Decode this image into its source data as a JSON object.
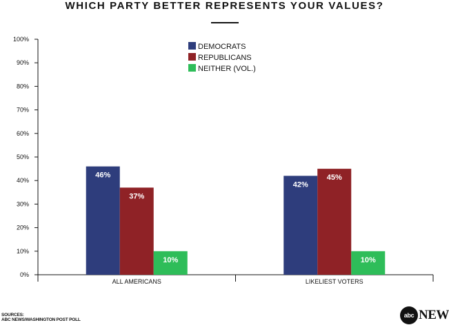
{
  "page": {
    "title": "WHICH PARTY BETTER REPRESENTS YOUR VALUES?",
    "sources_heading": "SOURCES:",
    "sources_text": "ABC NEWS/WASHINGTON POST POLL",
    "logo_circle": "abc",
    "logo_word": "NEWS"
  },
  "chart_data": {
    "type": "bar",
    "title": "WHICH PARTY BETTER REPRESENTS YOUR VALUES?",
    "categories": [
      "ALL AMERICANS",
      "LIKELIEST VOTERS"
    ],
    "series": [
      {
        "name": "DEMOCRATS",
        "values": [
          46,
          42
        ],
        "color": "#2e3d7c"
      },
      {
        "name": "REPUBLICANS",
        "values": [
          37,
          45
        ],
        "color": "#8f2226"
      },
      {
        "name": "NEITHER (VOL.)",
        "values": [
          10,
          10
        ],
        "color": "#2ebd59"
      }
    ],
    "data_labels": [
      [
        "46%",
        "42%"
      ],
      [
        "37%",
        "45%"
      ],
      [
        "10%",
        "10%"
      ]
    ],
    "yticks": [
      "0%",
      "10%",
      "20%",
      "30%",
      "40%",
      "50%",
      "60%",
      "70%",
      "80%",
      "90%",
      "100%"
    ],
    "ylim": [
      0,
      100
    ],
    "legend_position": "top-center",
    "grid": false,
    "label_color": "#ffffff"
  }
}
